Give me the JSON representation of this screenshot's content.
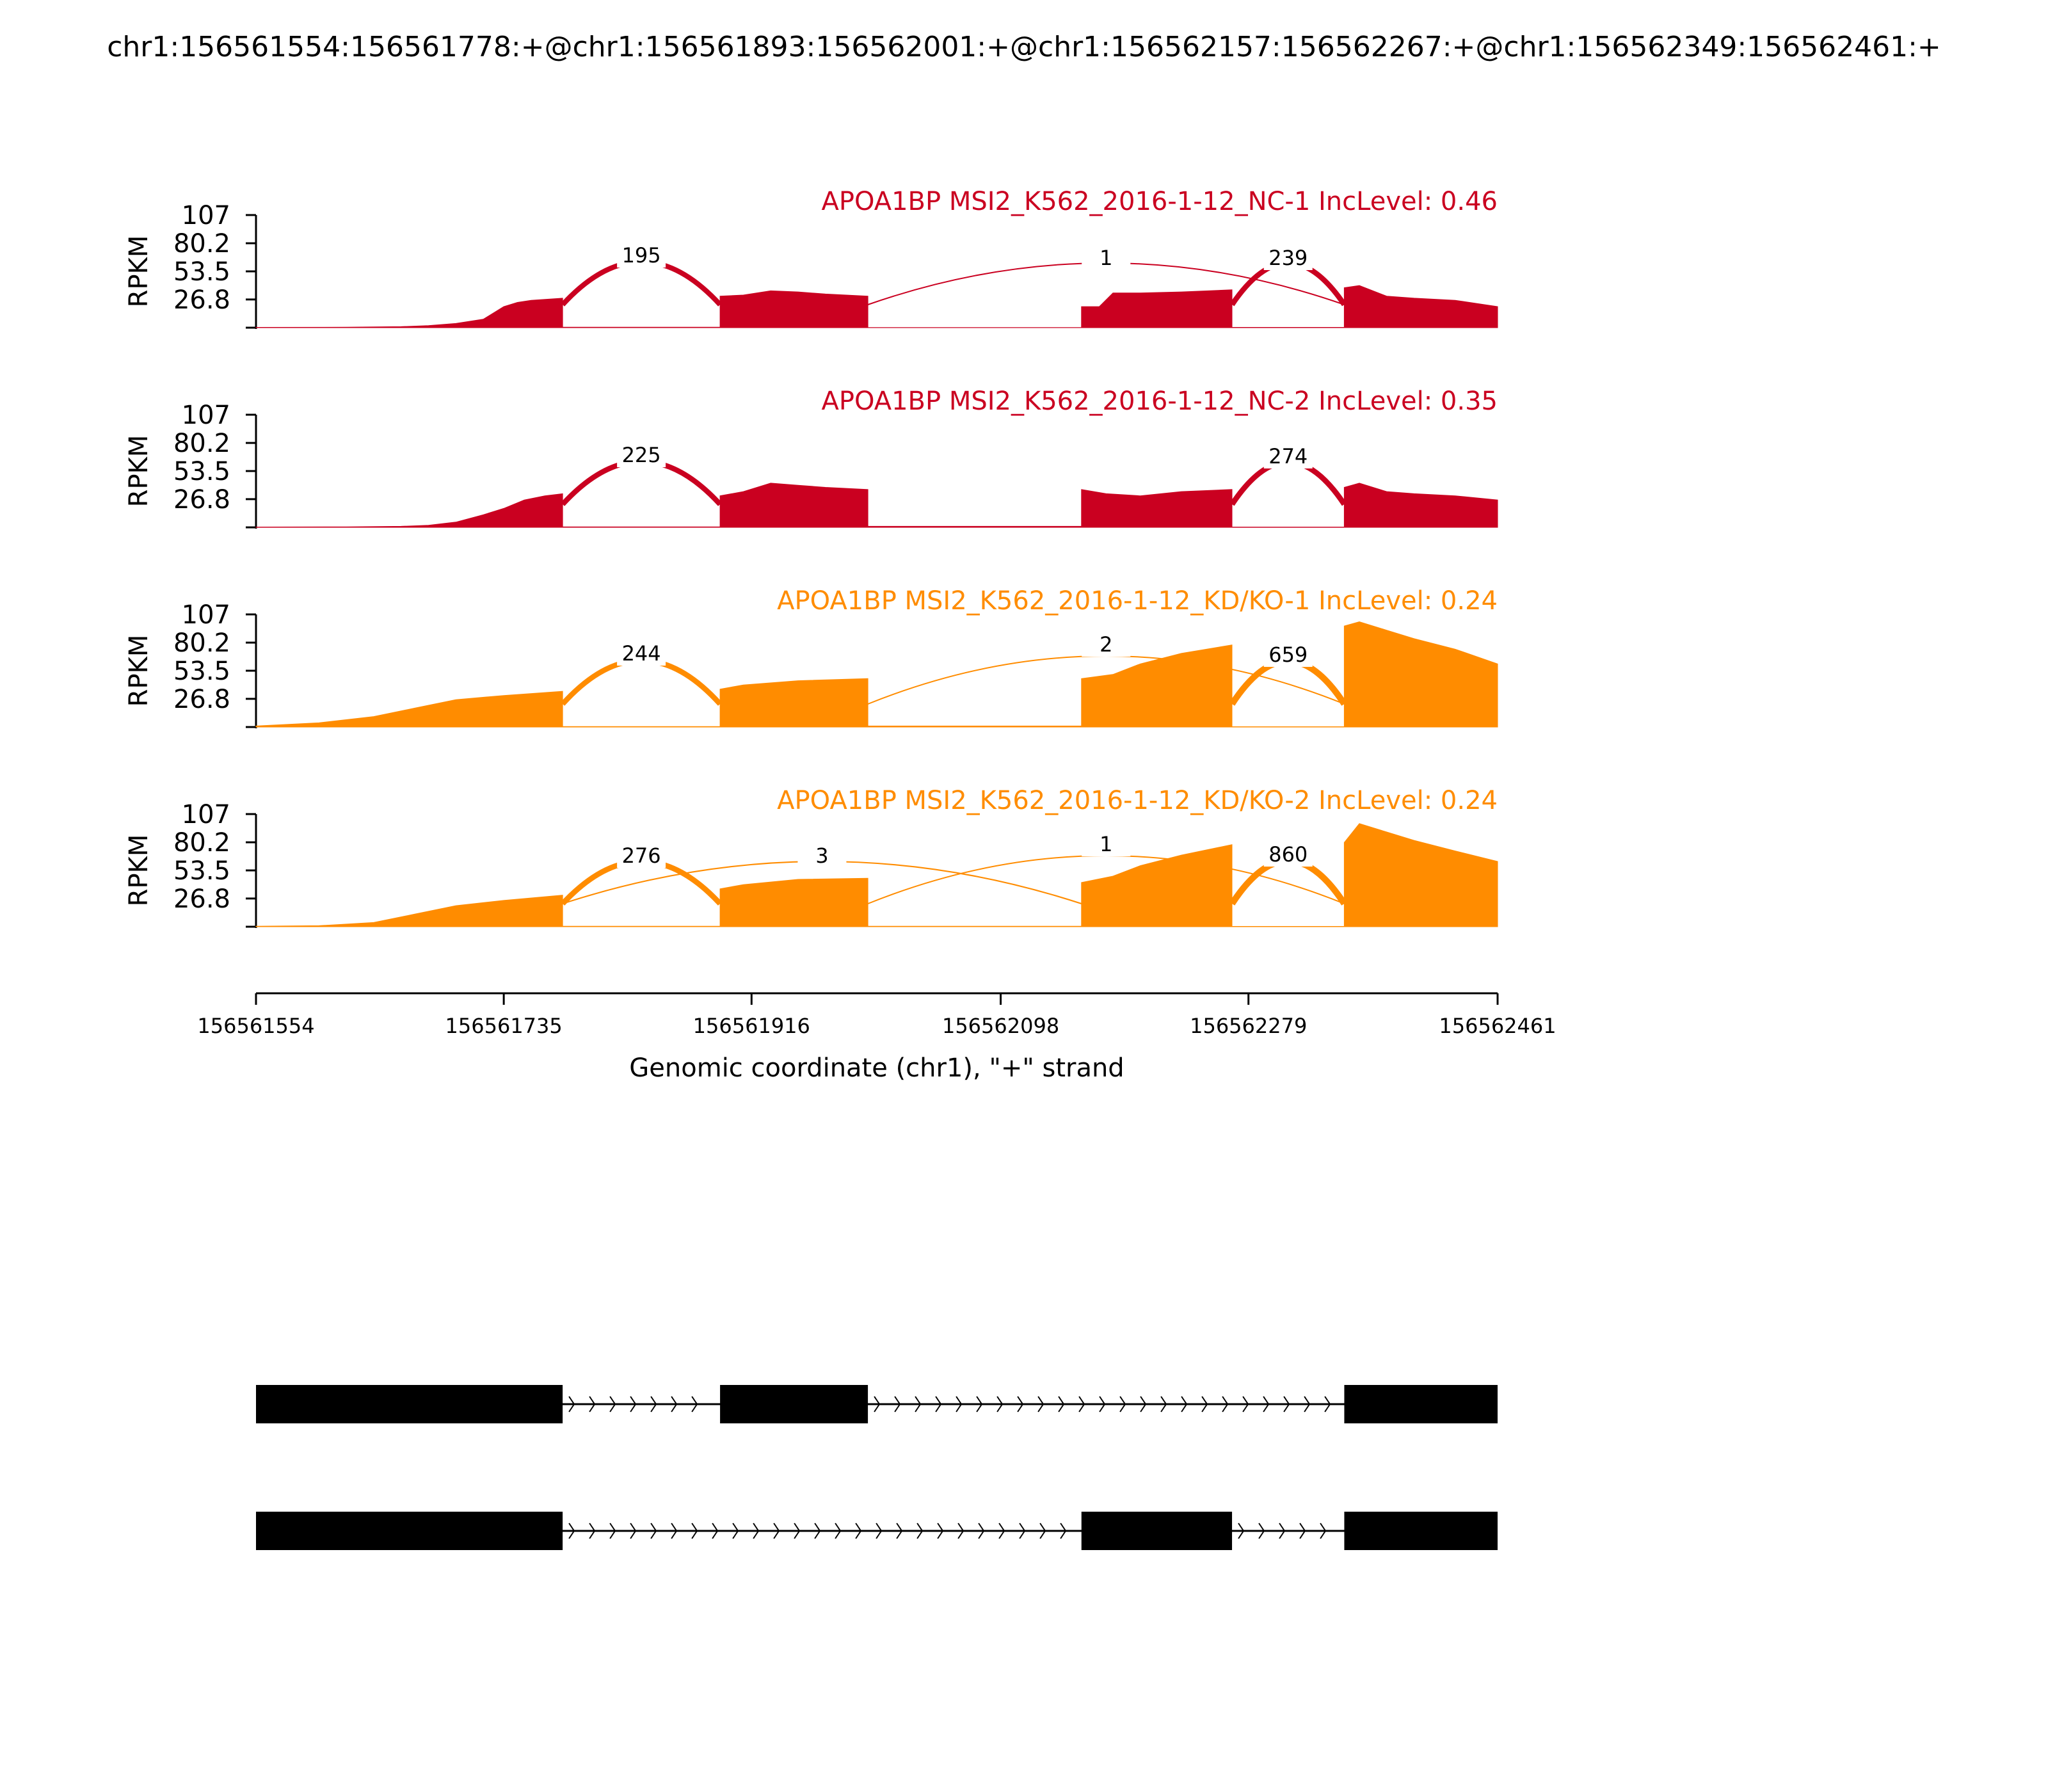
{
  "title": "chr1:156561554:156561778:+@chr1:156561893:156562001:+@chr1:156562157:156562267:+@chr1:156562349:156562461:+",
  "colors": {
    "nc": "#ca0020",
    "kd": "#ff8c00",
    "axis": "#000000"
  },
  "chart_data": {
    "type": "area",
    "ylabel": "RPKM",
    "xlabel": "Genomic coordinate (chr1), \"+\" strand",
    "xlim": [
      156561554,
      156562461
    ],
    "ylim": [
      0,
      107
    ],
    "yticks": [
      "107",
      "80.2",
      "53.5",
      "26.8"
    ],
    "yticks_values": [
      107,
      80.2,
      53.5,
      26.8
    ],
    "xticks": [
      "156561554",
      "156561735",
      "156561916",
      "156562098",
      "156562279",
      "156562461"
    ],
    "xticks_values": [
      156561554,
      156561735,
      156561916,
      156562098,
      156562279,
      156562461
    ],
    "exons": [
      [
        156561554,
        156561778
      ],
      [
        156561893,
        156562001
      ],
      [
        156562157,
        156562267
      ],
      [
        156562349,
        156562461
      ]
    ],
    "tracks": [
      {
        "label": "APOA1BP MSI2_K562_2016-1-12_NC-1 IncLevel: 0.46",
        "group": "nc",
        "coverage": [
          [
            156561554,
            0.3
          ],
          [
            156561620,
            0.4
          ],
          [
            156561660,
            1
          ],
          [
            156561680,
            2
          ],
          [
            156561700,
            4
          ],
          [
            156561720,
            8
          ],
          [
            156561735,
            20
          ],
          [
            156561745,
            24
          ],
          [
            156561755,
            26
          ],
          [
            156561778,
            28
          ],
          [
            156561778,
            0.5
          ],
          [
            156561893,
            0.5
          ],
          [
            156561893,
            30
          ],
          [
            156561910,
            31
          ],
          [
            156561930,
            35
          ],
          [
            156561950,
            34
          ],
          [
            156561970,
            32
          ],
          [
            156562001,
            30
          ],
          [
            156562001,
            0.2
          ],
          [
            156562157,
            0.2
          ],
          [
            156562157,
            20
          ],
          [
            156562170,
            20
          ],
          [
            156562180,
            33
          ],
          [
            156562200,
            33
          ],
          [
            156562230,
            34
          ],
          [
            156562267,
            36
          ],
          [
            156562267,
            0.3
          ],
          [
            156562349,
            0.3
          ],
          [
            156562349,
            38
          ],
          [
            156562360,
            40
          ],
          [
            156562380,
            30
          ],
          [
            156562400,
            28
          ],
          [
            156562430,
            26
          ],
          [
            156562461,
            20
          ]
        ],
        "junctions": [
          {
            "from": 156561778,
            "to": 156561893,
            "count": "195",
            "side": "up",
            "h": 14
          },
          {
            "from": 156562001,
            "to": 156562349,
            "count": "1",
            "side": "up",
            "h": 10
          },
          {
            "from": 156562267,
            "to": 156562349,
            "count": "239",
            "side": "up",
            "h": 10
          }
        ]
      },
      {
        "label": "APOA1BP MSI2_K562_2016-1-12_NC-2 IncLevel: 0.35",
        "group": "nc",
        "coverage": [
          [
            156561554,
            0.3
          ],
          [
            156561620,
            0.5
          ],
          [
            156561660,
            1
          ],
          [
            156561680,
            2
          ],
          [
            156561700,
            5
          ],
          [
            156561720,
            12
          ],
          [
            156561735,
            18
          ],
          [
            156561750,
            26
          ],
          [
            156561765,
            30
          ],
          [
            156561778,
            32
          ],
          [
            156561778,
            0.5
          ],
          [
            156561893,
            0.5
          ],
          [
            156561893,
            30
          ],
          [
            156561910,
            34
          ],
          [
            156561930,
            42
          ],
          [
            156561950,
            40
          ],
          [
            156561970,
            38
          ],
          [
            156562001,
            36
          ],
          [
            156562001,
            1
          ],
          [
            156562157,
            1
          ],
          [
            156562157,
            36
          ],
          [
            156562175,
            32
          ],
          [
            156562200,
            30
          ],
          [
            156562230,
            34
          ],
          [
            156562267,
            36
          ],
          [
            156562267,
            0.3
          ],
          [
            156562349,
            0.3
          ],
          [
            156562349,
            38
          ],
          [
            156562360,
            42
          ],
          [
            156562380,
            34
          ],
          [
            156562400,
            32
          ],
          [
            156562430,
            30
          ],
          [
            156562461,
            26
          ]
        ],
        "junctions": [
          {
            "from": 156561778,
            "to": 156561893,
            "count": "225",
            "side": "up",
            "h": 14
          },
          {
            "from": 156562267,
            "to": 156562349,
            "count": "274",
            "side": "up",
            "h": 12
          }
        ]
      },
      {
        "label": "APOA1BP MSI2_K562_2016-1-12_KD/KO-1 IncLevel: 0.24",
        "group": "kd",
        "coverage": [
          [
            156561554,
            1
          ],
          [
            156561600,
            4
          ],
          [
            156561640,
            10
          ],
          [
            156561670,
            18
          ],
          [
            156561700,
            26
          ],
          [
            156561735,
            30
          ],
          [
            156561778,
            34
          ],
          [
            156561778,
            0.5
          ],
          [
            156561893,
            0.5
          ],
          [
            156561893,
            36
          ],
          [
            156561910,
            40
          ],
          [
            156561950,
            44
          ],
          [
            156562001,
            46
          ],
          [
            156562001,
            1
          ],
          [
            156562157,
            1
          ],
          [
            156562157,
            46
          ],
          [
            156562180,
            50
          ],
          [
            156562200,
            60
          ],
          [
            156562230,
            70
          ],
          [
            156562267,
            78
          ],
          [
            156562267,
            0.3
          ],
          [
            156562349,
            0.3
          ],
          [
            156562349,
            96
          ],
          [
            156562360,
            100
          ],
          [
            156562380,
            92
          ],
          [
            156562400,
            84
          ],
          [
            156562430,
            74
          ],
          [
            156562461,
            60
          ]
        ],
        "junctions": [
          {
            "from": 156561778,
            "to": 156561893,
            "count": "244",
            "side": "up",
            "h": 16
          },
          {
            "from": 156562001,
            "to": 156562349,
            "count": "2",
            "side": "up",
            "h": 30
          },
          {
            "from": 156562267,
            "to": 156562349,
            "count": "659",
            "side": "up",
            "h": 14
          }
        ]
      },
      {
        "label": "APOA1BP MSI2_K562_2016-1-12_KD/KO-2 IncLevel: 0.24",
        "group": "kd",
        "coverage": [
          [
            156561554,
            0.5
          ],
          [
            156561600,
            1
          ],
          [
            156561640,
            4
          ],
          [
            156561670,
            12
          ],
          [
            156561700,
            20
          ],
          [
            156561735,
            25
          ],
          [
            156561778,
            30
          ],
          [
            156561778,
            0.5
          ],
          [
            156561893,
            0.5
          ],
          [
            156561893,
            36
          ],
          [
            156561910,
            40
          ],
          [
            156561950,
            45
          ],
          [
            156562001,
            46
          ],
          [
            156562001,
            0.5
          ],
          [
            156562157,
            0.5
          ],
          [
            156562157,
            42
          ],
          [
            156562180,
            48
          ],
          [
            156562200,
            58
          ],
          [
            156562230,
            68
          ],
          [
            156562267,
            78
          ],
          [
            156562267,
            0.3
          ],
          [
            156562349,
            0.3
          ],
          [
            156562349,
            80
          ],
          [
            156562360,
            98
          ],
          [
            156562380,
            90
          ],
          [
            156562400,
            82
          ],
          [
            156562430,
            72
          ],
          [
            156562461,
            62
          ]
        ],
        "junctions": [
          {
            "from": 156561778,
            "to": 156561893,
            "count": "276",
            "side": "up",
            "h": 12
          },
          {
            "from": 156561778,
            "to": 156562157,
            "count": "3",
            "side": "up",
            "h": 12
          },
          {
            "from": 156562001,
            "to": 156562349,
            "count": "1",
            "side": "up",
            "h": 30
          },
          {
            "from": 156562267,
            "to": 156562349,
            "count": "860",
            "side": "up",
            "h": 14
          }
        ]
      }
    ],
    "isoforms": [
      {
        "exons": [
          [
            156561554,
            156561778
          ],
          [
            156561893,
            156562001
          ],
          [
            156562349,
            156562461
          ]
        ]
      },
      {
        "exons": [
          [
            156561554,
            156561778
          ],
          [
            156562157,
            156562267
          ],
          [
            156562349,
            156562461
          ]
        ]
      }
    ]
  }
}
